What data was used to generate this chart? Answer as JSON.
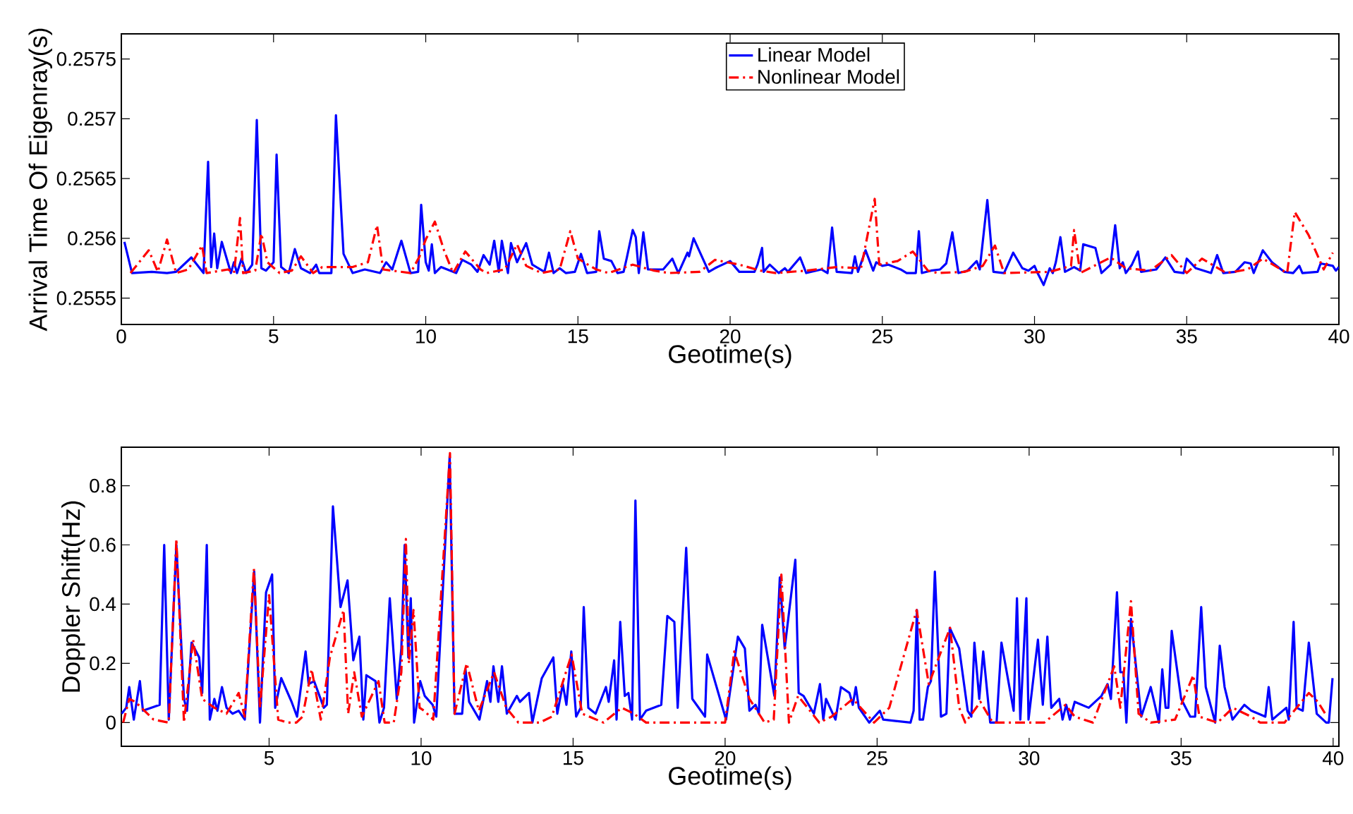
{
  "chart_data": [
    {
      "type": "line",
      "xlabel": "Geotime(s)",
      "ylabel": "Arrival Time Of Eigenray(s)",
      "xlim": [
        0,
        40
      ],
      "ylim": [
        0.25528,
        0.25771
      ],
      "xticks": [
        0,
        5,
        10,
        15,
        20,
        25,
        30,
        35,
        40
      ],
      "yticks": [
        0.2555,
        0.256,
        0.2565,
        0.257,
        0.2575
      ],
      "legend": "top",
      "series": [
        {
          "name": "Linear Model",
          "color": "#0000ff",
          "line_style": "solid",
          "x": [
            0.1,
            0.35,
            1.0,
            1.5,
            1.8,
            2.3,
            2.7,
            2.85,
            2.95,
            3.05,
            3.15,
            3.3,
            3.6,
            3.7,
            3.8,
            3.95,
            4.1,
            4.3,
            4.45,
            4.6,
            4.75,
            5.0,
            5.1,
            5.25,
            5.5,
            5.7,
            5.9,
            6.2,
            6.4,
            6.5,
            6.9,
            7.05,
            7.3,
            7.6,
            8.0,
            8.5,
            8.7,
            8.9,
            9.2,
            9.5,
            9.75,
            9.85,
            10.0,
            10.1,
            10.2,
            10.3,
            10.5,
            11.0,
            11.2,
            11.5,
            11.7,
            11.9,
            12.1,
            12.25,
            12.4,
            12.5,
            12.7,
            12.8,
            13.0,
            13.3,
            13.5,
            13.9,
            14.05,
            14.2,
            14.4,
            14.6,
            14.9,
            15.1,
            15.3,
            15.6,
            15.7,
            15.85,
            16.1,
            16.3,
            16.5,
            16.6,
            16.8,
            16.9,
            17.0,
            17.15,
            17.3,
            17.8,
            18.1,
            18.3,
            18.6,
            18.65,
            18.8,
            19.3,
            19.5,
            20.0,
            20.3,
            20.8,
            20.9,
            21.05,
            21.1,
            21.3,
            21.6,
            21.8,
            21.9,
            22.3,
            22.5,
            23.0,
            23.2,
            23.35,
            23.5,
            24.0,
            24.1,
            24.2,
            24.45,
            24.7,
            24.8,
            25.0,
            25.2,
            25.6,
            25.8,
            26.1,
            26.2,
            26.3,
            26.6,
            26.9,
            27.1,
            27.3,
            27.5,
            27.8,
            28.1,
            28.2,
            28.45,
            28.65,
            29.0,
            29.3,
            29.6,
            29.8,
            30.0,
            30.1,
            30.3,
            30.5,
            30.6,
            30.7,
            30.85,
            31.0,
            31.3,
            31.5,
            31.6,
            32.0,
            32.2,
            32.5,
            32.65,
            32.8,
            32.9,
            33.0,
            33.2,
            33.4,
            33.5,
            34.0,
            34.3,
            34.6,
            34.9,
            35.0,
            35.3,
            35.8,
            36.0,
            36.2,
            36.6,
            36.9,
            37.1,
            37.2,
            37.5,
            37.8,
            38.2,
            38.5,
            38.7,
            38.8,
            39.3,
            39.4,
            39.8,
            39.9,
            40.0
          ],
          "values": [
            0.25597,
            0.25571,
            0.25572,
            0.25571,
            0.25572,
            0.25584,
            0.25571,
            0.25664,
            0.25576,
            0.25604,
            0.25575,
            0.25597,
            0.25571,
            0.2558,
            0.25571,
            0.25583,
            0.25571,
            0.25578,
            0.25699,
            0.25575,
            0.25573,
            0.2558,
            0.2567,
            0.25576,
            0.25571,
            0.25591,
            0.25575,
            0.25571,
            0.25578,
            0.25571,
            0.25571,
            0.25703,
            0.25587,
            0.25571,
            0.25574,
            0.25571,
            0.2558,
            0.25574,
            0.25598,
            0.25571,
            0.25572,
            0.25628,
            0.2558,
            0.25573,
            0.25595,
            0.25571,
            0.25576,
            0.25571,
            0.25582,
            0.25578,
            0.25572,
            0.25586,
            0.25578,
            0.25598,
            0.25572,
            0.25598,
            0.25571,
            0.25596,
            0.2558,
            0.25596,
            0.25578,
            0.25572,
            0.25588,
            0.25571,
            0.25575,
            0.25571,
            0.25572,
            0.25587,
            0.25571,
            0.25572,
            0.25606,
            0.25583,
            0.25581,
            0.25571,
            0.25572,
            0.25583,
            0.25607,
            0.25601,
            0.25571,
            0.25605,
            0.25574,
            0.25574,
            0.25583,
            0.25571,
            0.25588,
            0.25585,
            0.256,
            0.25572,
            0.25575,
            0.25581,
            0.25572,
            0.25572,
            0.25578,
            0.25592,
            0.25572,
            0.25578,
            0.25571,
            0.25575,
            0.25572,
            0.25584,
            0.25571,
            0.25574,
            0.25571,
            0.25609,
            0.25572,
            0.25571,
            0.25585,
            0.25572,
            0.2559,
            0.25573,
            0.2558,
            0.25577,
            0.25578,
            0.25574,
            0.25571,
            0.25571,
            0.25606,
            0.25571,
            0.25573,
            0.25574,
            0.25579,
            0.25605,
            0.25571,
            0.25573,
            0.25581,
            0.25574,
            0.25632,
            0.25572,
            0.25571,
            0.25588,
            0.25575,
            0.25573,
            0.25577,
            0.25571,
            0.25561,
            0.25575,
            0.25571,
            0.2558,
            0.25601,
            0.25572,
            0.25576,
            0.25573,
            0.25595,
            0.25592,
            0.25571,
            0.25578,
            0.25611,
            0.25575,
            0.2558,
            0.25571,
            0.25578,
            0.25589,
            0.25572,
            0.25574,
            0.25584,
            0.25572,
            0.25571,
            0.25583,
            0.25575,
            0.25571,
            0.25586,
            0.25571,
            0.25572,
            0.2558,
            0.25579,
            0.25571,
            0.2559,
            0.2558,
            0.25572,
            0.25571,
            0.25577,
            0.25571,
            0.25572,
            0.25579,
            0.25577,
            0.25573,
            0.25576
          ]
        },
        {
          "name": "Nonlinear Model",
          "color": "#ff0000",
          "line_style": "dashdot",
          "x": [
            0.3,
            0.9,
            1.2,
            1.5,
            1.8,
            2.2,
            2.65,
            2.8,
            3.5,
            3.7,
            3.9,
            4.0,
            4.4,
            4.6,
            4.8,
            5.2,
            5.6,
            5.9,
            6.3,
            6.6,
            7.6,
            8.1,
            8.4,
            8.6,
            9.5,
            9.8,
            10.0,
            10.3,
            10.6,
            10.9,
            11.3,
            11.8,
            12.0,
            12.6,
            13.0,
            13.3,
            13.8,
            14.4,
            14.75,
            15.0,
            15.6,
            16.0,
            16.8,
            17.5,
            18.0,
            19.0,
            19.5,
            20.3,
            21.0,
            21.5,
            22.5,
            23.5,
            24.3,
            24.75,
            24.9,
            25.5,
            26.0,
            26.5,
            26.8,
            27.7,
            28.3,
            28.7,
            29.0,
            30.5,
            31.2,
            31.3,
            31.5,
            32.5,
            33.0,
            33.8,
            34.5,
            35.0,
            35.5,
            36.3,
            37.0,
            37.5,
            38.3,
            38.55,
            39.0,
            39.5,
            39.8
          ],
          "values": [
            0.25571,
            0.2559,
            0.25572,
            0.25599,
            0.25571,
            0.25574,
            0.25594,
            0.25571,
            0.25574,
            0.25571,
            0.25617,
            0.25571,
            0.25573,
            0.25604,
            0.2558,
            0.25571,
            0.25573,
            0.25585,
            0.25571,
            0.25576,
            0.25576,
            0.2558,
            0.25611,
            0.25574,
            0.25571,
            0.25585,
            0.25599,
            0.25614,
            0.2559,
            0.25571,
            0.25589,
            0.25574,
            0.25571,
            0.25574,
            0.25595,
            0.25577,
            0.25571,
            0.25574,
            0.25606,
            0.25583,
            0.25574,
            0.25571,
            0.25578,
            0.25573,
            0.25571,
            0.25572,
            0.25582,
            0.25578,
            0.25573,
            0.25571,
            0.25573,
            0.25576,
            0.25575,
            0.25633,
            0.25578,
            0.25581,
            0.25589,
            0.25573,
            0.25571,
            0.25572,
            0.25577,
            0.25594,
            0.25571,
            0.25572,
            0.25577,
            0.25607,
            0.25571,
            0.25584,
            0.25575,
            0.25573,
            0.25586,
            0.25571,
            0.25583,
            0.25571,
            0.25574,
            0.25583,
            0.25571,
            0.25622,
            0.25603,
            0.25574,
            0.25588
          ]
        }
      ]
    },
    {
      "type": "line",
      "xlabel": "Geotime(s)",
      "ylabel": "Doppler Shift(Hz)",
      "xlim": [
        0.14,
        40.19
      ],
      "ylim": [
        -0.08,
        0.93
      ],
      "xticks": [
        5,
        10,
        15,
        20,
        25,
        30,
        35,
        40
      ],
      "yticks": [
        0,
        0.2,
        0.4,
        0.6,
        0.8
      ],
      "series": [
        {
          "color": "#0000ff",
          "line_style": "solid",
          "x": [
            0.15,
            0.3,
            0.4,
            0.55,
            0.75,
            0.85,
            1.4,
            1.55,
            1.7,
            1.95,
            2.2,
            2.3,
            2.45,
            2.7,
            2.8,
            2.95,
            3.05,
            3.2,
            3.3,
            3.45,
            3.6,
            3.8,
            4.0,
            4.2,
            4.51,
            4.7,
            4.9,
            5.1,
            5.2,
            5.4,
            5.74,
            5.92,
            6.2,
            6.3,
            6.48,
            6.8,
            6.9,
            7.1,
            7.35,
            7.58,
            7.77,
            7.97,
            8.1,
            8.2,
            8.5,
            8.63,
            8.78,
            8.97,
            9.2,
            9.35,
            9.46,
            9.58,
            9.66,
            9.77,
            9.97,
            10.12,
            10.38,
            10.5,
            10.94,
            11.1,
            11.35,
            11.46,
            11.58,
            11.92,
            12.17,
            12.28,
            12.38,
            12.54,
            12.66,
            12.82,
            13.15,
            13.25,
            13.55,
            13.66,
            13.97,
            14.35,
            14.48,
            14.66,
            14.78,
            14.94,
            15.1,
            15.25,
            15.35,
            15.5,
            15.74,
            16.08,
            16.17,
            16.35,
            16.43,
            16.55,
            16.7,
            16.82,
            16.94,
            17.05,
            17.2,
            17.4,
            17.9,
            18.1,
            18.33,
            18.44,
            18.72,
            18.92,
            19.34,
            19.41,
            20.03,
            20.42,
            20.65,
            20.8,
            21.0,
            21.11,
            21.22,
            21.62,
            21.8,
            21.96,
            22.31,
            22.42,
            22.58,
            22.92,
            23.12,
            23.23,
            23.32,
            23.63,
            23.81,
            24.09,
            24.2,
            24.3,
            24.4,
            24.74,
            25.09,
            25.2,
            26.1,
            26.2,
            26.31,
            26.4,
            26.51,
            26.67,
            26.77,
            26.9,
            27.1,
            27.28,
            27.39,
            27.7,
            27.98,
            28.1,
            28.2,
            28.36,
            28.49,
            28.72,
            28.93,
            29.09,
            29.49,
            29.6,
            29.71,
            29.91,
            29.98,
            30.29,
            30.45,
            30.6,
            30.73,
            30.99,
            31.1,
            31.22,
            31.34,
            31.5,
            31.96,
            32.38,
            32.58,
            32.69,
            32.89,
            33.0,
            33.1,
            33.2,
            33.35,
            33.69,
            34.0,
            34.27,
            34.38,
            34.49,
            34.58,
            34.69,
            35.0,
            35.3,
            35.46,
            35.66,
            35.81,
            36.12,
            36.27,
            36.43,
            36.69,
            37.08,
            37.31,
            37.77,
            37.88,
            38.0,
            38.46,
            38.54,
            38.7,
            38.8,
            39.0,
            39.2,
            39.46,
            39.77,
            39.86,
            39.98
          ],
          "values": [
            0.03,
            0.05,
            0.12,
            0.01,
            0.14,
            0.04,
            0.06,
            0.6,
            0.01,
            0.6,
            0.08,
            0.04,
            0.27,
            0.22,
            0.1,
            0.6,
            0.01,
            0.08,
            0.04,
            0.12,
            0.05,
            0.03,
            0.04,
            0.01,
            0.51,
            0.0,
            0.44,
            0.5,
            0.05,
            0.15,
            0.07,
            0.02,
            0.24,
            0.13,
            0.14,
            0.05,
            0.06,
            0.73,
            0.39,
            0.48,
            0.21,
            0.29,
            0.01,
            0.16,
            0.14,
            0.0,
            0.05,
            0.42,
            0.08,
            0.25,
            0.6,
            0.22,
            0.42,
            0.0,
            0.14,
            0.09,
            0.06,
            0.02,
            0.9,
            0.03,
            0.03,
            0.18,
            0.07,
            0.01,
            0.14,
            0.07,
            0.19,
            0.07,
            0.19,
            0.03,
            0.09,
            0.07,
            0.1,
            0.0,
            0.15,
            0.22,
            0.03,
            0.13,
            0.06,
            0.24,
            0.02,
            0.05,
            0.39,
            0.05,
            0.03,
            0.12,
            0.07,
            0.21,
            0.01,
            0.34,
            0.09,
            0.1,
            0.01,
            0.75,
            0.01,
            0.04,
            0.06,
            0.36,
            0.34,
            0.05,
            0.59,
            0.08,
            0.02,
            0.23,
            0.01,
            0.29,
            0.25,
            0.04,
            0.06,
            0.03,
            0.33,
            0.09,
            0.49,
            0.25,
            0.55,
            0.1,
            0.09,
            0.03,
            0.13,
            0.01,
            0.08,
            0.01,
            0.12,
            0.1,
            0.06,
            0.12,
            0.05,
            0.0,
            0.04,
            0.01,
            0.0,
            0.04,
            0.38,
            0.01,
            0.01,
            0.12,
            0.14,
            0.51,
            0.02,
            0.03,
            0.32,
            0.25,
            0.04,
            0.02,
            0.27,
            0.08,
            0.24,
            0.0,
            0.0,
            0.27,
            0.04,
            0.42,
            0.01,
            0.42,
            0.01,
            0.28,
            0.06,
            0.29,
            0.05,
            0.08,
            0.01,
            0.06,
            0.01,
            0.07,
            0.05,
            0.09,
            0.13,
            0.08,
            0.44,
            0.17,
            0.17,
            0.0,
            0.35,
            0.02,
            0.12,
            0.0,
            0.18,
            0.05,
            0.05,
            0.31,
            0.08,
            0.02,
            0.02,
            0.39,
            0.12,
            0.0,
            0.26,
            0.12,
            0.01,
            0.06,
            0.04,
            0.02,
            0.12,
            0.01,
            0.05,
            0.01,
            0.34,
            0.05,
            0.04,
            0.27,
            0.03,
            0.0,
            0.0,
            0.15
          ]
        },
        {
          "color": "#ff0000",
          "line_style": "dashdot",
          "x": [
            0.2,
            0.4,
            0.6,
            0.9,
            1.2,
            1.7,
            1.95,
            2.2,
            2.5,
            2.8,
            3.2,
            3.6,
            4.0,
            4.2,
            4.5,
            4.7,
            5.0,
            5.3,
            5.6,
            5.9,
            6.1,
            6.4,
            6.7,
            7.0,
            7.45,
            7.6,
            7.8,
            8.05,
            8.6,
            8.8,
            9.1,
            9.35,
            9.5,
            9.6,
            9.75,
            9.95,
            10.1,
            10.4,
            10.95,
            11.1,
            11.5,
            11.9,
            12.4,
            12.8,
            13.2,
            13.9,
            14.3,
            14.95,
            15.3,
            16.0,
            16.6,
            17.0,
            17.4,
            19.0,
            20.0,
            20.3,
            20.8,
            21.3,
            21.6,
            21.85,
            22.1,
            22.4,
            23.1,
            23.5,
            24.2,
            24.9,
            25.4,
            26.3,
            26.7,
            27.4,
            27.7,
            27.9,
            28.4,
            28.8,
            30.5,
            31.2,
            31.5,
            32.1,
            32.8,
            33.0,
            33.35,
            33.6,
            34.0,
            34.8,
            35.4,
            35.6,
            36.2,
            36.7,
            37.3,
            37.6,
            38.4,
            39.2,
            39.5,
            39.8
          ],
          "values": [
            0.0,
            0.08,
            0.07,
            0.04,
            0.01,
            0.0,
            0.62,
            0.0,
            0.28,
            0.08,
            0.05,
            0.03,
            0.1,
            0.02,
            0.52,
            0.05,
            0.43,
            0.01,
            0.0,
            0.0,
            0.02,
            0.18,
            0.01,
            0.22,
            0.38,
            0.03,
            0.17,
            0.02,
            0.14,
            0.0,
            0.0,
            0.17,
            0.62,
            0.2,
            0.38,
            0.05,
            0.04,
            0.01,
            0.91,
            0.03,
            0.2,
            0.04,
            0.17,
            0.05,
            0.0,
            0.0,
            0.02,
            0.23,
            0.03,
            0.0,
            0.05,
            0.03,
            0.0,
            0.0,
            0.0,
            0.24,
            0.08,
            0.0,
            0.01,
            0.5,
            0.0,
            0.09,
            0.0,
            0.02,
            0.08,
            0.0,
            0.05,
            0.38,
            0.13,
            0.32,
            0.05,
            0.0,
            0.07,
            0.0,
            0.0,
            0.06,
            0.02,
            0.0,
            0.19,
            0.05,
            0.41,
            0.03,
            0.0,
            0.01,
            0.16,
            0.02,
            0.0,
            0.05,
            0.02,
            0.0,
            0.0,
            0.1,
            0.07,
            0.02
          ]
        }
      ]
    }
  ]
}
